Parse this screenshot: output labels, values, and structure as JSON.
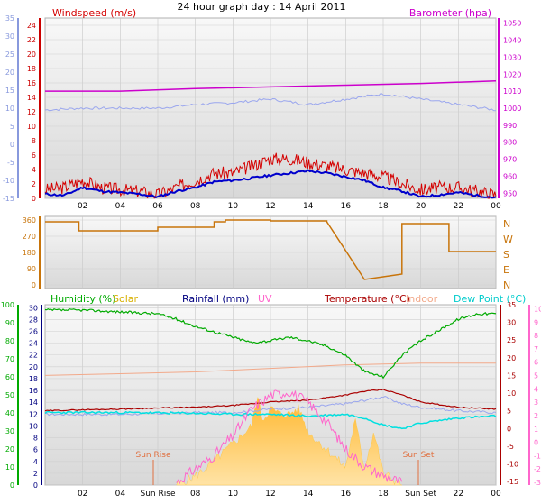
{
  "title": "24 hour graph day : 14 April 2011",
  "colors": {
    "windspeed": "#d40000",
    "windavg": "#0000cc",
    "temp_blue": "#9aa6ee",
    "barometer": "#cc00cc",
    "winddir": "#c8740a",
    "humidity": "#00aa00",
    "solar": "#ffc94a",
    "rainfall": "#000080",
    "uv": "#ff66cc",
    "temperature": "#aa0000",
    "indoor": "#f2a98a",
    "dewpoint": "#00e0e0",
    "grid_axis": "#7788cc"
  },
  "chart_data": [
    {
      "type": "line",
      "title": "24 hour graph day : 14 April 2011",
      "x_ticks": [
        "02",
        "04",
        "06",
        "08",
        "10",
        "12",
        "14",
        "16",
        "18",
        "20",
        "22",
        "00"
      ],
      "left_axis_outer": {
        "ticks": [
          -15,
          -10,
          -5,
          0,
          5,
          10,
          15,
          20,
          25,
          30,
          35
        ],
        "ylim": [
          -15,
          35
        ]
      },
      "left_axis": {
        "label": "Windspeed (m/s)",
        "ticks": [
          0,
          2,
          4,
          6,
          8,
          10,
          12,
          14,
          16,
          18,
          20,
          22,
          24
        ],
        "ylim": [
          0,
          25
        ]
      },
      "right_axis": {
        "label": "Barometer (hpa)",
        "ticks": [
          950,
          960,
          970,
          980,
          990,
          1000,
          1010,
          1020,
          1030,
          1040,
          1050
        ],
        "ylim": [
          947,
          1053
        ]
      },
      "series": [
        {
          "name": "Windspeed (m/s)",
          "axis": "left",
          "x": [
            0,
            1,
            2,
            3,
            4,
            5,
            6,
            7,
            8,
            9,
            10,
            11,
            12,
            13,
            14,
            15,
            16,
            17,
            18,
            19,
            20,
            21,
            22,
            23,
            24
          ],
          "values": [
            1.2,
            1.5,
            2.5,
            1.5,
            1.2,
            1.0,
            0.5,
            1.5,
            2.5,
            3.5,
            3.5,
            4.5,
            5.5,
            5.5,
            5.0,
            4.5,
            4.0,
            3.5,
            3.0,
            2.0,
            1.2,
            1.5,
            1.5,
            1.0,
            0.5
          ]
        },
        {
          "name": "",
          "axis": "left",
          "x": [
            0,
            1,
            2,
            3,
            4,
            5,
            6,
            7,
            8,
            9,
            10,
            11,
            12,
            13,
            14,
            15,
            16,
            17,
            18,
            19,
            20,
            21,
            22,
            23,
            24
          ],
          "values": [
            0.6,
            0.4,
            1.5,
            1.0,
            0.8,
            0.6,
            0.2,
            1.0,
            1.5,
            2.3,
            2.5,
            2.8,
            3.2,
            3.5,
            3.8,
            3.5,
            3.0,
            2.5,
            1.5,
            1.0,
            0.2,
            0.5,
            0.8,
            0.4,
            0.1
          ]
        },
        {
          "name": "",
          "axis": "left_outer",
          "x": [
            0,
            2,
            4,
            6,
            8,
            10,
            12,
            14,
            16,
            18,
            20,
            22,
            24
          ],
          "values": [
            9.5,
            10,
            10,
            10,
            11,
            11.5,
            12.5,
            11,
            12.5,
            14,
            12.5,
            11,
            9.5
          ]
        },
        {
          "name": "Barometer (hpa)",
          "axis": "right",
          "x": [
            0,
            4,
            8,
            12,
            16,
            20,
            24
          ],
          "values": [
            1010,
            1010,
            1011.5,
            1012.5,
            1013.5,
            1014.5,
            1016
          ]
        }
      ]
    },
    {
      "type": "line",
      "left_axis": {
        "ticks": [
          0,
          90,
          180,
          270,
          360
        ],
        "ylim": [
          0,
          360
        ]
      },
      "right_labels": [
        "N",
        "W",
        "S",
        "E",
        "N"
      ],
      "series": [
        {
          "name": "",
          "x": [
            0,
            1.8,
            1.8,
            6,
            6,
            9,
            9,
            9.6,
            9.6,
            12,
            12,
            12.8,
            12.8,
            15,
            15,
            17,
            18,
            19,
            19,
            21.5,
            21.5,
            24
          ],
          "values": [
            350,
            350,
            300,
            300,
            320,
            320,
            350,
            350,
            360,
            360,
            355,
            355,
            355,
            355,
            350,
            30,
            45,
            60,
            340,
            340,
            185,
            185
          ]
        }
      ]
    },
    {
      "type": "line",
      "left_axis_outer": {
        "label": "Humidity (%)",
        "ticks": [
          0,
          10,
          20,
          30,
          40,
          50,
          60,
          70,
          80,
          90,
          100
        ],
        "ylim": [
          0,
          100
        ]
      },
      "left_axis": {
        "label": "Rainfall (mm)",
        "ticks": [
          0,
          2,
          4,
          6,
          8,
          10,
          12,
          14,
          16,
          18,
          20,
          22,
          24,
          26,
          28,
          30
        ],
        "ylim": [
          0,
          30.5
        ]
      },
      "right_axis": {
        "label": "Temperature (°C)",
        "ticks": [
          -15,
          -10,
          -5,
          0,
          5,
          10,
          15,
          20,
          25,
          30,
          35
        ],
        "ylim": [
          -16,
          35
        ]
      },
      "right_axis_outer": {
        "label": "UV",
        "ticks": [
          -3,
          -2,
          -1,
          0,
          1,
          2,
          3,
          4,
          5,
          6,
          7,
          8,
          9,
          10
        ],
        "ylim": [
          -3.2,
          10.3
        ]
      },
      "x_ticks": [
        "02",
        "04",
        "Sun Rise",
        "08",
        "10",
        "12",
        "14",
        "16",
        "18",
        "Sun Set",
        "22",
        "00"
      ],
      "annotations": [
        "Sun Rise",
        "Sun Set"
      ],
      "legend": [
        "Humidity (%)",
        "Solar",
        "Rainfall (mm)",
        "UV",
        "Temperature (°C)",
        "Indoor",
        "Dew Point (°C)"
      ],
      "series": [
        {
          "name": "Humidity (%)",
          "axis": "left_outer",
          "x": [
            0,
            2,
            4,
            6,
            7,
            8,
            10,
            11,
            12,
            13,
            14,
            15,
            16,
            17,
            18,
            19,
            20,
            21,
            22,
            23,
            24
          ],
          "values": [
            97,
            97,
            96,
            95,
            92,
            88,
            82,
            79,
            80,
            82,
            80,
            77,
            72,
            63,
            60,
            72,
            80,
            86,
            92,
            95,
            95
          ]
        },
        {
          "name": "Solar",
          "axis": "left",
          "x": [
            7,
            8,
            9,
            10,
            11,
            11.3,
            11.6,
            12,
            12.5,
            13,
            13.5,
            14,
            15,
            16,
            16.5,
            17,
            17.5,
            18,
            18.5,
            19
          ],
          "values": [
            0,
            1.5,
            4,
            7,
            10,
            15,
            11,
            13,
            12,
            12,
            13,
            9,
            6,
            3,
            11,
            3,
            9,
            2,
            1,
            0
          ]
        },
        {
          "name": "Rainfall (mm)",
          "axis": "left",
          "x": [
            0,
            24
          ],
          "values": [
            0,
            0
          ]
        },
        {
          "name": "UV",
          "axis": "right_outer",
          "x": [
            7,
            8,
            9,
            10,
            11,
            12,
            13,
            14,
            15,
            16,
            17,
            18,
            19
          ],
          "values": [
            -3,
            -2,
            -1,
            0.5,
            2.5,
            3.5,
            3.8,
            3,
            1.5,
            -0.5,
            -1.8,
            -2.5,
            -3
          ]
        },
        {
          "name": "Temperature (°C)",
          "axis": "right",
          "x": [
            0,
            2,
            4,
            6,
            8,
            10,
            12,
            14,
            16,
            17,
            18,
            19,
            20,
            22,
            24
          ],
          "values": [
            5,
            5.3,
            5.5,
            5.8,
            6,
            6.5,
            7.5,
            8,
            9.5,
            10.5,
            11,
            9.5,
            7.5,
            6,
            5.5
          ]
        },
        {
          "name": "Indoor",
          "axis": "right",
          "x": [
            0,
            4,
            8,
            12,
            16,
            20,
            24
          ],
          "values": [
            15,
            15.5,
            16,
            17,
            18,
            18.5,
            18.5
          ]
        },
        {
          "name": "",
          "axis": "right",
          "x": [
            0,
            4,
            8,
            10,
            12,
            14,
            16,
            18,
            19,
            20,
            22,
            24
          ],
          "values": [
            4,
            4,
            4.5,
            4.5,
            5.5,
            6,
            7,
            9,
            7,
            6,
            5,
            4.5
          ]
        },
        {
          "name": "Dew Point (°C)",
          "axis": "right",
          "x": [
            0,
            4,
            8,
            10,
            12,
            14,
            16,
            17,
            18,
            19,
            20,
            22,
            24
          ],
          "values": [
            4.5,
            4.5,
            4.3,
            4,
            4,
            3.5,
            4,
            3,
            1,
            0,
            1.5,
            3,
            3.5
          ]
        }
      ]
    }
  ]
}
